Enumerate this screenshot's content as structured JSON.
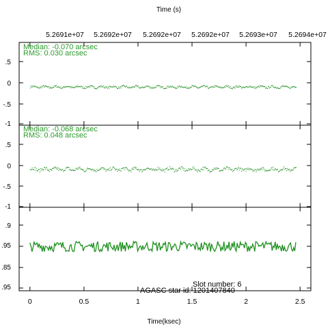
{
  "top_axis_title": "Time (s)",
  "top_axis_ticks": [
    "5.2691e+07",
    "5.2692e+07",
    "5.2692e+07",
    "5.2692e+07",
    "5.2693e+07",
    "5.2694e+07"
  ],
  "x_axis_label": "Time(ksec)",
  "colors": {
    "series": "#1f8f1f",
    "annotation": "#2a9a2a",
    "axis": "#000000"
  },
  "chart_data": [
    {
      "type": "scatter",
      "panel": "top",
      "annotations": [
        "Median: -0.070 arcsec",
        "RMS: 0.030 arcsec"
      ],
      "ylim": [
        -1,
        1
      ],
      "ytick_labels": [
        ".5",
        "0",
        "-.5",
        "-1"
      ],
      "xlim": [
        -0.1,
        2.6
      ],
      "xtick_values": [
        0,
        0.5,
        1,
        1.5,
        2,
        2.5
      ],
      "series": [
        {
          "x_range": [
            0.0,
            2.46
          ],
          "median": -0.07,
          "rms": 0.03
        }
      ]
    },
    {
      "type": "scatter",
      "panel": "middle",
      "annotations": [
        "Median: -0.068 arcsec",
        "RMS: 0.048 arcsec"
      ],
      "ylim": [
        -1,
        1
      ],
      "ytick_labels": [
        ".5",
        "0",
        "-.5",
        "-1"
      ],
      "xlim": [
        -0.1,
        2.6
      ],
      "xtick_values": [
        0,
        0.5,
        1,
        1.5,
        2,
        2.5
      ],
      "series": [
        {
          "x_range": [
            0.0,
            2.46
          ],
          "median": -0.068,
          "rms": 0.048
        }
      ]
    },
    {
      "type": "line",
      "panel": "bottom",
      "annotations": [
        "Slot number: 6",
        "AGASC star id: 1201407840"
      ],
      "ylim": [
        0.84,
        1.0
      ],
      "ytick_labels": [
        ".9",
        ".95",
        ".85"
      ],
      "xlim": [
        -0.1,
        2.6
      ],
      "xtick_labels": [
        "0",
        "0.5",
        "1",
        "1.5",
        "2",
        "2.5"
      ],
      "xtick_values": [
        0,
        0.5,
        1,
        1.5,
        2,
        2.5
      ],
      "series": [
        {
          "x_range": [
            0.0,
            2.46
          ],
          "center": 0.925,
          "amplitude": 0.01
        }
      ]
    }
  ]
}
